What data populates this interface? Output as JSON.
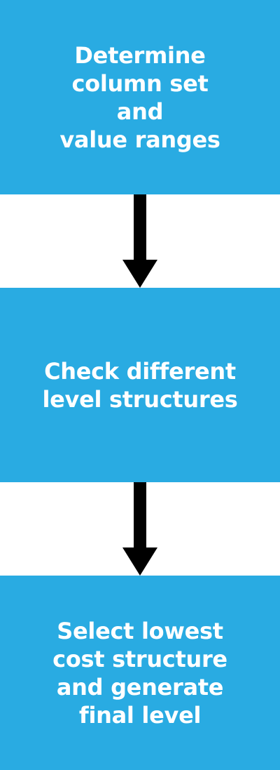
{
  "colors": {
    "box_fill": "#29abe2",
    "box_text": "#ffffff",
    "arrow": "#000000",
    "background": "#ffffff"
  },
  "steps": [
    {
      "lines": [
        "Determine",
        "column set",
        "and",
        "value ranges"
      ]
    },
    {
      "lines": [
        "Check different",
        "level structures"
      ]
    },
    {
      "lines": [
        "Select lowest",
        "cost structure",
        "and generate",
        "final level"
      ]
    }
  ],
  "arrows": [
    {
      "icon": "arrow-down-icon"
    },
    {
      "icon": "arrow-down-icon"
    }
  ]
}
